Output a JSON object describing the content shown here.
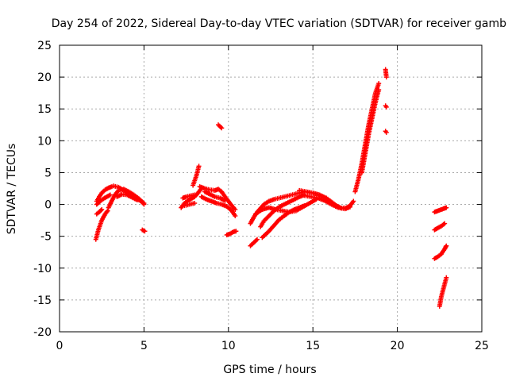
{
  "chart_data": {
    "type": "scatter",
    "title": "Day 254 of 2022, Sidereal Day-to-day VTEC variation (SDTVAR) for receiver gamb",
    "xlabel": "GPS time / hours",
    "ylabel": "SDTVAR / TECUs",
    "xlim": [
      0,
      25
    ],
    "ylim": [
      -20,
      25
    ],
    "xticks": [
      "0",
      "5",
      "10",
      "15",
      "20",
      "25"
    ],
    "yticks": [
      "25",
      "20",
      "15",
      "10",
      "5",
      "0",
      "-5",
      "-10",
      "-15",
      "-20"
    ],
    "grid": true,
    "marker": "plus",
    "color": "#ff0000",
    "segments": [
      [
        [
          2.15,
          -5.5
        ],
        [
          2.3,
          -4
        ],
        [
          2.5,
          -2.5
        ],
        [
          2.7,
          -1.5
        ],
        [
          2.85,
          -1.0
        ]
      ],
      [
        [
          2.2,
          -1.5
        ],
        [
          2.35,
          -1.2
        ],
        [
          2.5,
          -0.8
        ]
      ],
      [
        [
          2.2,
          0.5
        ],
        [
          2.35,
          1.2
        ],
        [
          2.5,
          1.8
        ],
        [
          2.7,
          2.3
        ],
        [
          2.9,
          2.6
        ],
        [
          3.1,
          2.8
        ]
      ],
      [
        [
          2.2,
          0.0
        ],
        [
          2.4,
          0.5
        ],
        [
          2.6,
          0.9
        ],
        [
          2.8,
          1.2
        ],
        [
          3.0,
          1.5
        ]
      ],
      [
        [
          2.9,
          -0.5
        ],
        [
          3.1,
          0.6
        ],
        [
          3.3,
          1.6
        ],
        [
          3.5,
          2.2
        ],
        [
          3.8,
          2.4
        ],
        [
          4.1,
          2.0
        ],
        [
          4.4,
          1.5
        ],
        [
          4.7,
          0.9
        ],
        [
          4.9,
          0.4
        ],
        [
          5.0,
          0.0
        ]
      ],
      [
        [
          3.2,
          2.9
        ],
        [
          3.5,
          2.7
        ],
        [
          3.8,
          2.2
        ],
        [
          4.1,
          1.7
        ],
        [
          4.4,
          1.2
        ],
        [
          4.7,
          0.7
        ],
        [
          5.0,
          0.2
        ]
      ],
      [
        [
          3.4,
          1.2
        ],
        [
          3.7,
          1.6
        ],
        [
          4.0,
          1.5
        ],
        [
          4.3,
          1.1
        ],
        [
          4.6,
          0.7
        ]
      ],
      [
        [
          4.9,
          -4.0
        ],
        [
          5.05,
          -4.2
        ]
      ],
      [
        [
          7.2,
          -0.5
        ],
        [
          7.4,
          0.2
        ],
        [
          7.6,
          0.6
        ],
        [
          7.8,
          0.9
        ],
        [
          8.0,
          1.2
        ],
        [
          8.2,
          1.8
        ],
        [
          8.4,
          2.5
        ]
      ],
      [
        [
          7.3,
          1.0
        ],
        [
          7.5,
          1.2
        ],
        [
          7.8,
          1.4
        ],
        [
          8.0,
          1.5
        ]
      ],
      [
        [
          7.4,
          -0.2
        ],
        [
          7.7,
          0.0
        ],
        [
          8.0,
          0.2
        ]
      ],
      [
        [
          7.9,
          3.0
        ],
        [
          8.1,
          4.5
        ],
        [
          8.25,
          6.0
        ]
      ],
      [
        [
          8.3,
          2.8
        ],
        [
          8.6,
          2.5
        ],
        [
          8.9,
          2.3
        ],
        [
          9.2,
          2.2
        ],
        [
          9.4,
          2.4
        ],
        [
          9.6,
          2.0
        ],
        [
          9.8,
          1.2
        ],
        [
          10.0,
          0.5
        ],
        [
          10.2,
          -0.2
        ],
        [
          10.4,
          -0.8
        ]
      ],
      [
        [
          8.4,
          1.2
        ],
        [
          8.7,
          0.8
        ],
        [
          9.0,
          0.5
        ],
        [
          9.3,
          0.2
        ],
        [
          9.6,
          0.0
        ],
        [
          9.9,
          -0.3
        ],
        [
          10.2,
          -1.0
        ],
        [
          10.4,
          -1.8
        ]
      ],
      [
        [
          8.6,
          2.0
        ],
        [
          8.9,
          1.6
        ],
        [
          9.2,
          1.2
        ],
        [
          9.5,
          1.0
        ],
        [
          9.8,
          0.6
        ]
      ],
      [
        [
          9.4,
          12.5
        ],
        [
          9.6,
          12.0
        ]
      ],
      [
        [
          9.9,
          -4.8
        ],
        [
          10.1,
          -4.6
        ],
        [
          10.3,
          -4.3
        ],
        [
          10.45,
          -4.2
        ]
      ],
      [
        [
          11.3,
          -6.5
        ],
        [
          11.5,
          -6.0
        ],
        [
          11.7,
          -5.5
        ]
      ],
      [
        [
          11.3,
          -3.0
        ],
        [
          11.5,
          -2.0
        ],
        [
          11.7,
          -1.2
        ],
        [
          11.9,
          -0.6
        ],
        [
          12.1,
          0.0
        ],
        [
          12.4,
          0.5
        ],
        [
          12.7,
          0.8
        ],
        [
          13.0,
          1.0
        ],
        [
          13.3,
          1.2
        ],
        [
          13.6,
          1.4
        ],
        [
          13.9,
          1.6
        ],
        [
          14.2,
          1.8
        ],
        [
          14.5,
          2.0
        ],
        [
          14.8,
          1.9
        ]
      ],
      [
        [
          11.9,
          -3.5
        ],
        [
          12.1,
          -2.6
        ],
        [
          12.4,
          -1.8
        ],
        [
          12.7,
          -1.0
        ],
        [
          13.0,
          -0.4
        ],
        [
          13.3,
          0.0
        ],
        [
          13.6,
          0.4
        ],
        [
          13.9,
          0.8
        ],
        [
          14.2,
          1.2
        ],
        [
          14.5,
          1.5
        ]
      ],
      [
        [
          12.0,
          -5.2
        ],
        [
          12.2,
          -4.7
        ],
        [
          12.4,
          -4.2
        ],
        [
          12.6,
          -3.6
        ],
        [
          12.8,
          -3.0
        ],
        [
          13.0,
          -2.4
        ],
        [
          13.3,
          -1.8
        ],
        [
          13.6,
          -1.2
        ],
        [
          13.9,
          -0.8
        ],
        [
          14.2,
          -0.5
        ],
        [
          14.5,
          -0.2
        ]
      ],
      [
        [
          11.6,
          -1.5
        ],
        [
          12.0,
          -0.8
        ],
        [
          12.4,
          -0.5
        ],
        [
          12.8,
          -0.8
        ],
        [
          13.2,
          -1.0
        ],
        [
          13.6,
          -1.2
        ],
        [
          14.0,
          -1.0
        ],
        [
          14.4,
          -0.4
        ],
        [
          14.8,
          0.2
        ],
        [
          15.2,
          0.8
        ]
      ],
      [
        [
          14.2,
          2.2
        ],
        [
          14.6,
          2.0
        ],
        [
          15.0,
          1.8
        ],
        [
          15.4,
          1.5
        ],
        [
          15.8,
          1.0
        ],
        [
          16.1,
          0.4
        ],
        [
          16.4,
          -0.2
        ],
        [
          16.7,
          -0.6
        ],
        [
          17.0,
          -0.5
        ],
        [
          17.2,
          -0.2
        ],
        [
          17.4,
          0.5
        ]
      ],
      [
        [
          14.5,
          1.4
        ],
        [
          14.9,
          1.2
        ],
        [
          15.3,
          1.0
        ],
        [
          15.7,
          0.6
        ],
        [
          16.1,
          0.0
        ],
        [
          16.5,
          -0.5
        ],
        [
          16.9,
          -0.7
        ],
        [
          17.2,
          -0.4
        ]
      ],
      [
        [
          17.5,
          2.0
        ],
        [
          17.7,
          4.0
        ],
        [
          17.9,
          6.5
        ],
        [
          18.1,
          9.5
        ],
        [
          18.3,
          12.5
        ],
        [
          18.5,
          15.0
        ],
        [
          18.7,
          17.5
        ],
        [
          18.9,
          19.0
        ]
      ],
      [
        [
          17.9,
          5.0
        ],
        [
          18.1,
          8.0
        ],
        [
          18.3,
          11.0
        ],
        [
          18.5,
          13.5
        ],
        [
          18.7,
          16.0
        ],
        [
          18.9,
          18.0
        ]
      ],
      [
        [
          19.3,
          21.2
        ],
        [
          19.35,
          20.0
        ]
      ],
      [
        [
          19.3,
          15.5
        ],
        [
          19.35,
          15.3
        ]
      ],
      [
        [
          19.3,
          11.5
        ],
        [
          19.35,
          11.3
        ]
      ],
      [
        [
          22.2,
          -1.2
        ],
        [
          22.4,
          -1.0
        ],
        [
          22.6,
          -0.8
        ],
        [
          22.8,
          -0.6
        ],
        [
          22.9,
          -0.5
        ]
      ],
      [
        [
          22.2,
          -4.0
        ],
        [
          22.4,
          -3.7
        ],
        [
          22.6,
          -3.4
        ],
        [
          22.8,
          -3.0
        ]
      ],
      [
        [
          22.2,
          -8.5
        ],
        [
          22.4,
          -8.2
        ],
        [
          22.6,
          -7.8
        ],
        [
          22.8,
          -7.0
        ],
        [
          22.9,
          -6.5
        ]
      ],
      [
        [
          22.5,
          -16.0
        ],
        [
          22.6,
          -14.5
        ],
        [
          22.7,
          -13.5
        ],
        [
          22.8,
          -12.5
        ],
        [
          22.9,
          -11.5
        ]
      ]
    ]
  }
}
